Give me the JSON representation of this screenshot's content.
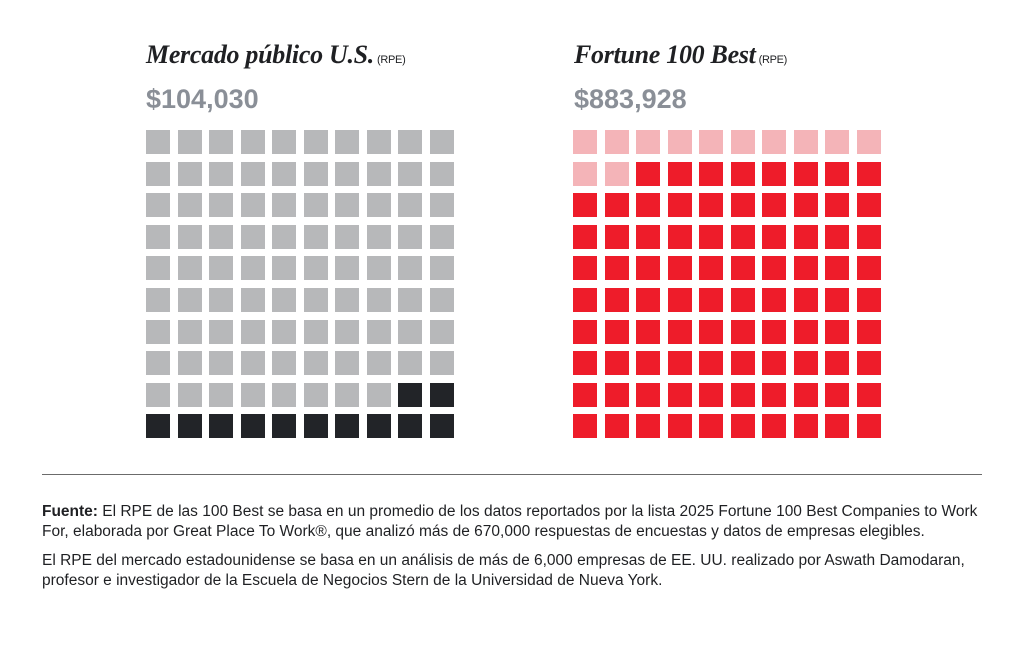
{
  "panels": [
    {
      "title": "Mercado público U.S.",
      "unit": "(RPE)",
      "value": "$104,030"
    },
    {
      "title": "Fortune 100 Best",
      "unit": "(RPE)",
      "value": "$883,928"
    }
  ],
  "chart_data": [
    {
      "type": "waffle",
      "title": "Mercado público U.S.",
      "value": 104030,
      "value_label": "$104,030",
      "total_squares": 100,
      "filled_squares": 12,
      "colors": {
        "filled": "#222428",
        "empty": "#b7b8ba"
      }
    },
    {
      "type": "waffle",
      "title": "Fortune 100 Best",
      "value": 883928,
      "value_label": "$883,928",
      "total_squares": 100,
      "filled_squares": 88,
      "colors": {
        "filled": "#ee1c2a",
        "empty": "#f4b4b8"
      }
    }
  ],
  "notes": [
    {
      "label": "Fuente:",
      "text": " El RPE de las 100 Best se basa en un promedio de los datos reportados por la lista 2025 Fortune 100 Best Companies to Work For, elaborada por Great Place To Work®, que analizó más de 670,000 respuestas de encuestas y datos de empresas elegibles."
    },
    {
      "label": "",
      "text": "El RPE del mercado estadounidense se basa en un análisis de más de 6,000 empresas de EE. UU. realizado por Aswath Damodaran, profesor e investigador de la Escuela de Negocios Stern de la Universidad de Nueva York."
    }
  ]
}
